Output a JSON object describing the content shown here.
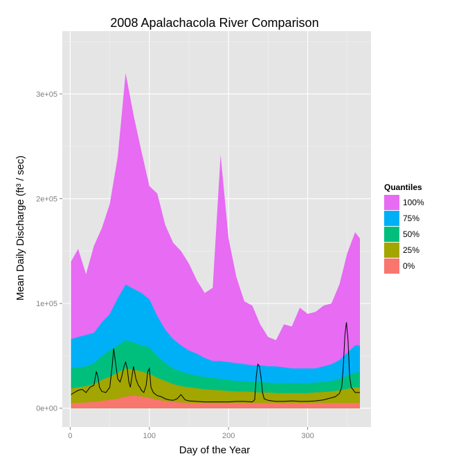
{
  "colors": {
    "panel_background": "#e5e5e5",
    "grid_major": "#ffffff",
    "grid_minor": "#f2f2f2",
    "tick_text": "#7f7f7f",
    "observed_line": "#000000"
  },
  "chart_data": {
    "type": "area",
    "title": "2008 Apalachacola River Comparison",
    "xlabel": "Day of the Year",
    "ylabel": "Mean Daily Discharge (ft³ / sec)",
    "xlim": [
      -10,
      380
    ],
    "ylim": [
      -18000,
      360000
    ],
    "x_ticks": [
      0,
      100,
      200,
      300
    ],
    "x_tick_labels": [
      "0",
      "100",
      "200",
      "300"
    ],
    "y_ticks": [
      0,
      100000,
      200000,
      300000
    ],
    "y_tick_labels": [
      "0e+00",
      "1e+05",
      "2e+05",
      "3e+05"
    ],
    "grid": true,
    "legend": {
      "title": "Quantiles",
      "placement": "right",
      "entries": [
        {
          "label": "100%",
          "color": "#e76bf3"
        },
        {
          "label": "75%",
          "color": "#00b0f6"
        },
        {
          "label": "50%",
          "color": "#00bf7d"
        },
        {
          "label": "25%",
          "color": "#a3a500"
        },
        {
          "label": "0%",
          "color": "#f8766d"
        }
      ]
    },
    "x": [
      1,
      10,
      20,
      30,
      40,
      50,
      60,
      70,
      80,
      90,
      100,
      110,
      120,
      130,
      140,
      150,
      160,
      170,
      180,
      190,
      200,
      210,
      220,
      230,
      240,
      250,
      260,
      270,
      280,
      290,
      300,
      310,
      320,
      330,
      340,
      350,
      360,
      366
    ],
    "series": [
      {
        "label": "100%",
        "color": "#e76bf3",
        "values": [
          140000,
          152000,
          128000,
          155000,
          172000,
          195000,
          240000,
          320000,
          280000,
          245000,
          212000,
          205000,
          175000,
          158000,
          150000,
          138000,
          122000,
          110000,
          115000,
          242000,
          162000,
          125000,
          102000,
          98000,
          80000,
          68000,
          65000,
          80000,
          78000,
          96000,
          90000,
          92000,
          98000,
          100000,
          118000,
          148000,
          168000,
          162000
        ]
      },
      {
        "label": "75%",
        "color": "#00b0f6",
        "values": [
          66000,
          68000,
          70000,
          72000,
          82000,
          90000,
          105000,
          118000,
          114000,
          110000,
          104000,
          88000,
          75000,
          66000,
          60000,
          55000,
          52000,
          48000,
          45000,
          45000,
          44000,
          43000,
          42000,
          41000,
          41000,
          40000,
          40000,
          39000,
          38000,
          38000,
          38000,
          38000,
          40000,
          42000,
          46000,
          53000,
          60000,
          60000
        ]
      },
      {
        "label": "50%",
        "color": "#00bf7d",
        "values": [
          38000,
          39000,
          40000,
          43000,
          50000,
          55000,
          60000,
          65000,
          63000,
          60000,
          58000,
          50000,
          43000,
          38000,
          35000,
          33000,
          31000,
          30000,
          29000,
          28000,
          27000,
          26000,
          25500,
          25000,
          25000,
          24500,
          24000,
          24000,
          24000,
          24000,
          24000,
          24500,
          25000,
          26000,
          28000,
          31000,
          34000,
          35000
        ]
      },
      {
        "label": "25%",
        "color": "#a3a500",
        "values": [
          19000,
          20000,
          21000,
          23000,
          27000,
          30000,
          34000,
          38000,
          37000,
          35000,
          33000,
          29000,
          26000,
          23000,
          21000,
          20000,
          19000,
          18000,
          17500,
          17000,
          16500,
          16000,
          16000,
          15500,
          15000,
          15000,
          14500,
          14500,
          14500,
          14500,
          14500,
          15000,
          15500,
          16000,
          17000,
          18500,
          20000,
          20000
        ]
      },
      {
        "label": "0%",
        "color": "#f8766d",
        "values": [
          5000,
          5000,
          5500,
          6000,
          7000,
          8000,
          9000,
          11000,
          12000,
          11000,
          10000,
          8000,
          7000,
          6000,
          5500,
          5000,
          5000,
          5000,
          5000,
          5000,
          5000,
          5000,
          5000,
          5000,
          5000,
          5000,
          5000,
          5000,
          5000,
          5000,
          5000,
          5000,
          5000,
          5000,
          5000,
          5000,
          5000,
          5000
        ]
      }
    ],
    "line": {
      "color": "#000000",
      "x": [
        1,
        5,
        10,
        15,
        20,
        25,
        30,
        33,
        35,
        37,
        40,
        45,
        50,
        53,
        55,
        57,
        60,
        63,
        65,
        68,
        70,
        72,
        74,
        76,
        78,
        80,
        83,
        86,
        88,
        90,
        93,
        96,
        98,
        100,
        102,
        105,
        110,
        115,
        120,
        125,
        130,
        135,
        140,
        145,
        150,
        160,
        170,
        180,
        190,
        200,
        210,
        220,
        230,
        233,
        235,
        237,
        239,
        241,
        243,
        245,
        250,
        255,
        260,
        270,
        280,
        290,
        300,
        310,
        320,
        330,
        335,
        340,
        343,
        345,
        347,
        349,
        351,
        353,
        355,
        360,
        366
      ],
      "values": [
        13000,
        15000,
        17000,
        18000,
        15000,
        20000,
        22000,
        35000,
        30000,
        20000,
        16000,
        15000,
        20000,
        40000,
        57000,
        45000,
        28000,
        25000,
        30000,
        40000,
        44000,
        38000,
        25000,
        20000,
        30000,
        40000,
        28000,
        22000,
        20000,
        17000,
        15000,
        22000,
        35000,
        38000,
        20000,
        15000,
        12000,
        11000,
        9000,
        8000,
        7500,
        9000,
        13000,
        8000,
        7000,
        6500,
        6000,
        6000,
        6000,
        6000,
        6500,
        6500,
        6000,
        8000,
        30000,
        42000,
        40000,
        30000,
        15000,
        9000,
        7500,
        7000,
        6500,
        6500,
        7000,
        6500,
        6500,
        7000,
        8000,
        10000,
        11000,
        14000,
        20000,
        40000,
        70000,
        82000,
        65000,
        30000,
        20000,
        15000,
        15000
      ]
    }
  }
}
